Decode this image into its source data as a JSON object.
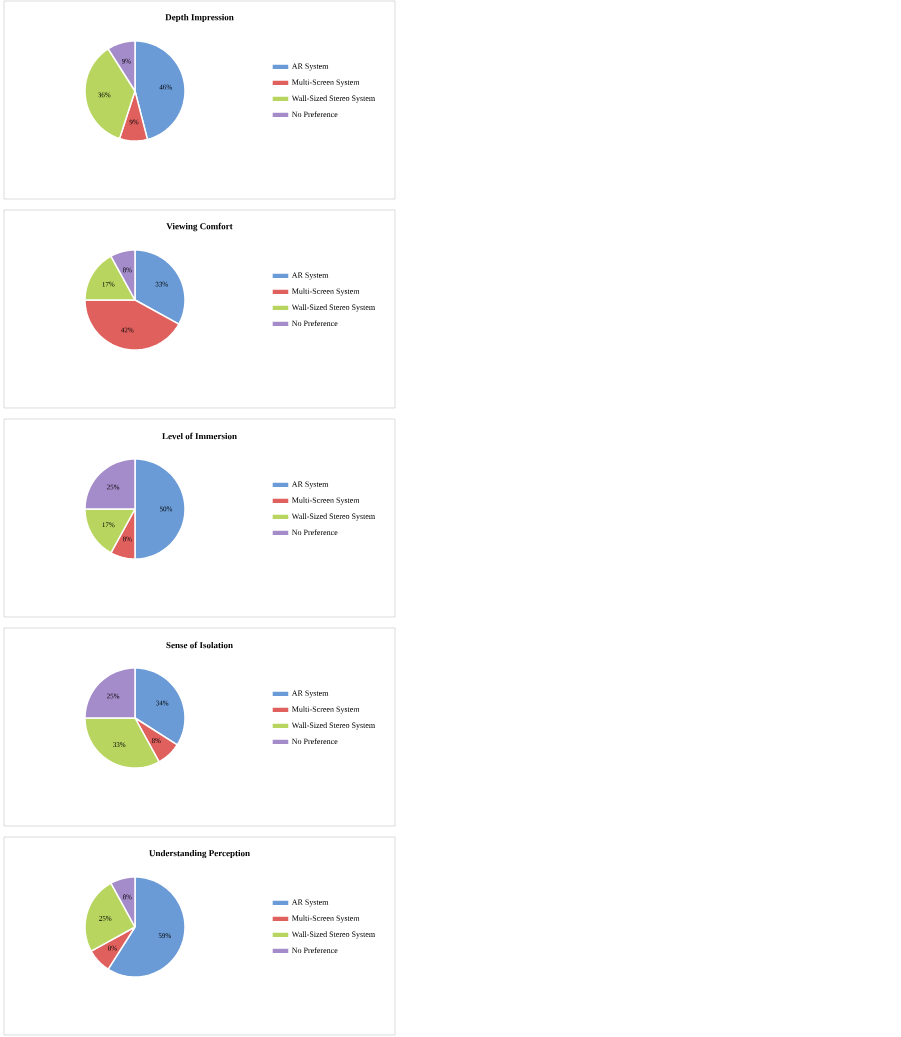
{
  "chart_data": [
    {
      "type": "pie",
      "title": "Depth Impression",
      "categories": [
        "AR System",
        "Multi-Screen System",
        "Wall-Sized Stereo System",
        "No Preference"
      ],
      "values": [
        46,
        9,
        36,
        9
      ],
      "value_labels": [
        "46%",
        "9%",
        "36%",
        "9%"
      ],
      "colors": [
        "#6a9bd6",
        "#e0605e",
        "#b7d55f",
        "#a48bc9"
      ],
      "legend": "right"
    },
    {
      "type": "pie",
      "title": "Viewing Comfort",
      "categories": [
        "AR System",
        "Multi-Screen System",
        "Wall-Sized Stereo System",
        "No Preference"
      ],
      "values": [
        33,
        42,
        17,
        8
      ],
      "value_labels": [
        "33%",
        "42%",
        "17%",
        "8%"
      ],
      "colors": [
        "#6a9bd6",
        "#e0605e",
        "#b7d55f",
        "#a48bc9"
      ],
      "legend": "right"
    },
    {
      "type": "pie",
      "title": "Level of Immersion",
      "categories": [
        "AR System",
        "Multi-Screen System",
        "Wall-Sized Stereo System",
        "No Preference"
      ],
      "values": [
        50,
        8,
        17,
        25
      ],
      "value_labels": [
        "50%",
        "8%",
        "17%",
        "25%"
      ],
      "colors": [
        "#6a9bd6",
        "#e0605e",
        "#b7d55f",
        "#a48bc9"
      ],
      "legend": "right"
    },
    {
      "type": "pie",
      "title": "Sense of Isolation",
      "categories": [
        "AR System",
        "Multi-Screen System",
        "Wall-Sized Stereo System",
        "No Preference"
      ],
      "values": [
        34,
        8,
        33,
        25
      ],
      "value_labels": [
        "34%",
        "8%",
        "33%",
        "25%"
      ],
      "colors": [
        "#6a9bd6",
        "#e0605e",
        "#b7d55f",
        "#a48bc9"
      ],
      "legend": "right"
    },
    {
      "type": "pie",
      "title": "Understanding Perception",
      "categories": [
        "AR System",
        "Multi-Screen System",
        "Wall-Sized Stereo System",
        "No Preference"
      ],
      "values": [
        59,
        8,
        25,
        8
      ],
      "value_labels": [
        "59%",
        "8%",
        "25%",
        "8%"
      ],
      "colors": [
        "#6a9bd6",
        "#e0605e",
        "#b7d55f",
        "#a48bc9"
      ],
      "legend": "right"
    }
  ]
}
